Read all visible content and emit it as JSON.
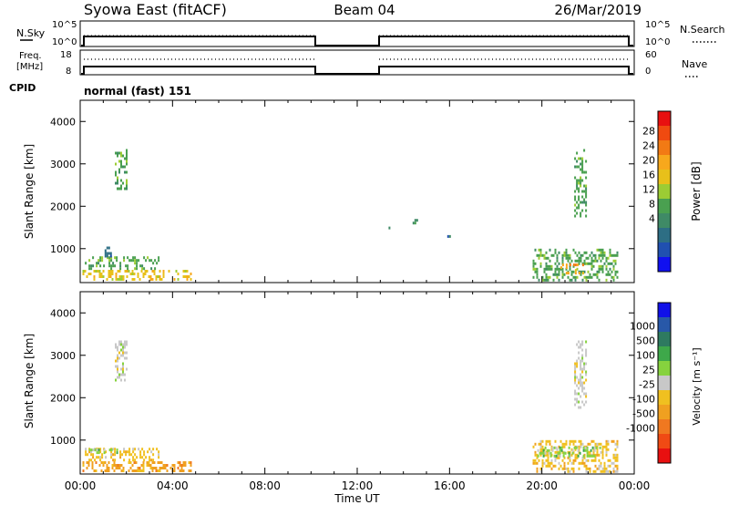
{
  "header": {
    "station": "Syowa East (fitACF)",
    "beam": "Beam 04",
    "date": "26/Mar/2019"
  },
  "sky_panel": {
    "left_label": "N.Sky",
    "right_label": "N.Search",
    "tick_top": "10^5",
    "tick_bottom": "10^0"
  },
  "freq_panel": {
    "left_label_1": "Freq.",
    "left_label_2": "[MHz]",
    "right_label": "Nave",
    "left_tick_top": "18",
    "left_tick_bottom": "8",
    "right_tick_top": "60",
    "right_tick_bottom": "0"
  },
  "cpid": {
    "label": "CPID",
    "program": "normal (fast) 151"
  },
  "axes": {
    "ylabel": "Slant Range [km]",
    "xlabel": "Time UT",
    "yticks": [
      "4000",
      "3000",
      "2000",
      "1000"
    ],
    "xticks": [
      "00:00",
      "04:00",
      "08:00",
      "12:00",
      "16:00",
      "20:00",
      "00:00"
    ]
  },
  "power_scale": {
    "label": "Power [dB]",
    "ticks": [
      "28",
      "24",
      "20",
      "16",
      "12",
      "8",
      "4"
    ],
    "colors": [
      "#e81010",
      "#f04a10",
      "#f27a14",
      "#f7a81c",
      "#e8c01a",
      "#9ccc34",
      "#4aa050",
      "#3f8a66",
      "#2d6e84",
      "#2050b0",
      "#1010f0"
    ]
  },
  "velocity_scale": {
    "label": "Velocity [m s⁻¹]",
    "ticks": [
      "1000",
      "500",
      "100",
      "25",
      "-25",
      "-100",
      "-500",
      "-1000"
    ],
    "colors": [
      "#1010e8",
      "#2858a8",
      "#2e7a60",
      "#3ea84a",
      "#86d23e",
      "#c8c8c8",
      "#f0c020",
      "#f0a020",
      "#f07820",
      "#f04a14",
      "#e81010"
    ]
  },
  "chart_data": [
    {
      "type": "heatmap",
      "title": "Power",
      "xlabel": "Time UT",
      "ylabel": "Slant Range [km]",
      "xlim": [
        0,
        24
      ],
      "ylim": [
        200,
        4500
      ],
      "colorbar_label": "Power [dB]",
      "colorbar_range": [
        0,
        32
      ],
      "regions": [
        {
          "t_start": 0.1,
          "t_end": 4.8,
          "r_start": 250,
          "r_end": 500,
          "dB": 20
        },
        {
          "t_start": 0.2,
          "t_end": 3.4,
          "r_start": 500,
          "r_end": 820,
          "dB": 12
        },
        {
          "t_start": 0.9,
          "t_end": 1.3,
          "r_start": 850,
          "r_end": 1050,
          "dB": 8
        },
        {
          "t_start": 1.5,
          "t_end": 2.0,
          "r_start": 2400,
          "r_end": 3350,
          "dB": 14
        },
        {
          "t_start": 13.2,
          "t_end": 13.4,
          "r_start": 1480,
          "r_end": 1520,
          "dB": 10
        },
        {
          "t_start": 14.4,
          "t_end": 14.6,
          "r_start": 1600,
          "r_end": 1700,
          "dB": 10
        },
        {
          "t_start": 15.9,
          "t_end": 16.1,
          "r_start": 1280,
          "r_end": 1320,
          "dB": 6
        },
        {
          "t_start": 19.6,
          "t_end": 23.3,
          "r_start": 250,
          "r_end": 1000,
          "dB": 14
        },
        {
          "t_start": 20.8,
          "t_end": 21.8,
          "r_start": 450,
          "r_end": 650,
          "dB": 22
        },
        {
          "t_start": 21.4,
          "t_end": 21.9,
          "r_start": 1800,
          "r_end": 3350,
          "dB": 12
        }
      ]
    },
    {
      "type": "heatmap",
      "title": "Velocity",
      "xlabel": "Time UT",
      "ylabel": "Slant Range [km]",
      "xlim": [
        0,
        24
      ],
      "ylim": [
        200,
        4500
      ],
      "colorbar_label": "Velocity [m s⁻¹]",
      "colorbar_range": [
        -1000,
        1000
      ],
      "regions": [
        {
          "t_start": 0.1,
          "t_end": 4.8,
          "r_start": 250,
          "r_end": 500,
          "vel": -300
        },
        {
          "t_start": 0.2,
          "t_end": 3.4,
          "r_start": 500,
          "r_end": 820,
          "vel": -150
        },
        {
          "t_start": 0.3,
          "t_end": 1.6,
          "r_start": 700,
          "r_end": 800,
          "vel": 120
        },
        {
          "t_start": 1.5,
          "t_end": 2.0,
          "r_start": 2400,
          "r_end": 3350,
          "vel": -80
        },
        {
          "t_start": 19.6,
          "t_end": 23.3,
          "r_start": 250,
          "r_end": 1000,
          "vel": -200
        },
        {
          "t_start": 19.8,
          "t_end": 22.6,
          "r_start": 650,
          "r_end": 850,
          "vel": 150
        },
        {
          "t_start": 21.4,
          "t_end": 21.9,
          "r_start": 1800,
          "r_end": 3350,
          "vel": 60
        }
      ]
    }
  ]
}
